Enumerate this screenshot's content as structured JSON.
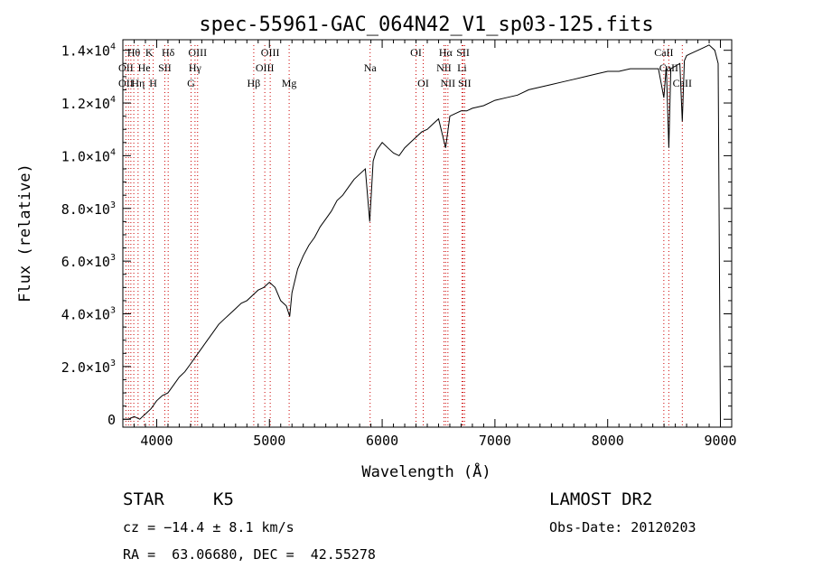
{
  "chart_data": {
    "type": "line",
    "title": "spec-55961-GAC_064N42_V1_sp03-125.fits",
    "xlabel": "Wavelength (Å)",
    "ylabel": "Flux (relative)",
    "xlim": [
      3700,
      9100
    ],
    "ylim": [
      -300,
      14400
    ],
    "grid": false,
    "x_ticks": [
      4000,
      5000,
      6000,
      7000,
      8000,
      9000
    ],
    "x_tick_labels": [
      "4000",
      "5000",
      "6000",
      "7000",
      "8000",
      "9000"
    ],
    "y_ticks": [
      0,
      2000,
      4000,
      6000,
      8000,
      10000,
      12000,
      14000
    ],
    "y_tick_labels": [
      {
        "mant": "0",
        "exp": ""
      },
      {
        "mant": "2.0×10",
        "exp": "3"
      },
      {
        "mant": "4.0×10",
        "exp": "3"
      },
      {
        "mant": "6.0×10",
        "exp": "3"
      },
      {
        "mant": "8.0×10",
        "exp": "3"
      },
      {
        "mant": "1.0×10",
        "exp": "4"
      },
      {
        "mant": "1.2×10",
        "exp": "4"
      },
      {
        "mant": "1.4×10",
        "exp": "4"
      }
    ],
    "series": [
      {
        "x": [
          3700,
          3750,
          3800,
          3850,
          3900,
          3950,
          4000,
          4050,
          4100,
          4150,
          4200,
          4250,
          4300,
          4350,
          4400,
          4450,
          4500,
          4550,
          4600,
          4650,
          4700,
          4750,
          4800,
          4850,
          4900,
          4950,
          5000,
          5050,
          5100,
          5150,
          5180,
          5200,
          5250,
          5300,
          5350,
          5400,
          5450,
          5500,
          5550,
          5600,
          5650,
          5700,
          5750,
          5800,
          5850,
          5890,
          5920,
          5950,
          6000,
          6050,
          6100,
          6150,
          6200,
          6250,
          6300,
          6350,
          6400,
          6450,
          6500,
          6563,
          6600,
          6650,
          6700,
          6750,
          6800,
          6900,
          7000,
          7100,
          7200,
          7300,
          7400,
          7500,
          7600,
          7700,
          7800,
          7900,
          8000,
          8100,
          8200,
          8300,
          8400,
          8450,
          8498,
          8520,
          8542,
          8560,
          8600,
          8640,
          8662,
          8680,
          8700,
          8750,
          8800,
          8850,
          8900,
          8950,
          8980,
          9000
        ],
        "y": [
          0,
          0,
          100,
          0,
          200,
          400,
          700,
          900,
          1000,
          1300,
          1600,
          1800,
          2100,
          2400,
          2700,
          3000,
          3300,
          3600,
          3800,
          4000,
          4200,
          4400,
          4500,
          4700,
          4900,
          5000,
          5200,
          5000,
          4500,
          4300,
          3900,
          4800,
          5700,
          6200,
          6600,
          6900,
          7300,
          7600,
          7900,
          8300,
          8500,
          8800,
          9100,
          9300,
          9500,
          7500,
          9800,
          10200,
          10500,
          10300,
          10100,
          10000,
          10300,
          10500,
          10700,
          10900,
          11000,
          11200,
          11400,
          10300,
          11500,
          11600,
          11700,
          11700,
          11800,
          11900,
          12100,
          12200,
          12300,
          12500,
          12600,
          12700,
          12800,
          12900,
          13000,
          13100,
          13200,
          13200,
          13300,
          13300,
          13300,
          13300,
          12200,
          13400,
          10300,
          13300,
          13400,
          13500,
          11300,
          13600,
          13800,
          13900,
          14000,
          14100,
          14200,
          14000,
          13500,
          0
        ]
      }
    ],
    "line_labels": [
      {
        "text": "Hθ",
        "row": 1,
        "x": 3797
      },
      {
        "text": "K",
        "row": 1,
        "x": 3934
      },
      {
        "text": "Hδ",
        "row": 1,
        "x": 4102
      },
      {
        "text": "OIII",
        "row": 1,
        "x": 4363
      },
      {
        "text": "OIII",
        "row": 1,
        "x": 5007
      },
      {
        "text": "OI",
        "row": 1,
        "x": 6300
      },
      {
        "text": "Hα",
        "row": 1,
        "x": 6563
      },
      {
        "text": "SII",
        "row": 1,
        "x": 6717
      },
      {
        "text": "CaII",
        "row": 1,
        "x": 8498
      },
      {
        "text": "OII",
        "row": 2,
        "x": 3727
      },
      {
        "text": "He",
        "row": 2,
        "x": 3889
      },
      {
        "text": "SII",
        "row": 2,
        "x": 4072
      },
      {
        "text": "Hγ",
        "row": 2,
        "x": 4340
      },
      {
        "text": "OIII",
        "row": 2,
        "x": 4959
      },
      {
        "text": "Na",
        "row": 2,
        "x": 5893
      },
      {
        "text": "NII",
        "row": 2,
        "x": 6548
      },
      {
        "text": "Li",
        "row": 2,
        "x": 6708
      },
      {
        "text": "CaII",
        "row": 2,
        "x": 8542
      },
      {
        "text": "OII",
        "row": 3,
        "x": 3727
      },
      {
        "text": "Hη",
        "row": 3,
        "x": 3835
      },
      {
        "text": "H",
        "row": 3,
        "x": 3969
      },
      {
        "text": "G",
        "row": 3,
        "x": 4305
      },
      {
        "text": "Hβ",
        "row": 3,
        "x": 4861
      },
      {
        "text": "Mg",
        "row": 3,
        "x": 5175
      },
      {
        "text": "OI",
        "row": 3,
        "x": 6364
      },
      {
        "text": "NII",
        "row": 3,
        "x": 6583
      },
      {
        "text": "SII",
        "row": 3,
        "x": 6731
      },
      {
        "text": "CaII",
        "row": 3,
        "x": 8662
      }
    ],
    "line_marker_x": [
      3727,
      3750,
      3771,
      3797,
      3835,
      3889,
      3934,
      3969,
      4072,
      4102,
      4305,
      4340,
      4363,
      4861,
      4959,
      5007,
      5175,
      5893,
      6300,
      6364,
      6548,
      6563,
      6583,
      6708,
      6717,
      6731,
      8498,
      8542,
      8662
    ],
    "line_marker_color": "#cc0000"
  },
  "info": {
    "object_class": "STAR",
    "subclass": "K5",
    "survey": "LAMOST DR2",
    "redshift": "cz = −14.4 ± 8.1 km/s",
    "obs_date": "Obs-Date: 20120203",
    "coords": "RA =  63.06680, DEC =  42.55278"
  }
}
